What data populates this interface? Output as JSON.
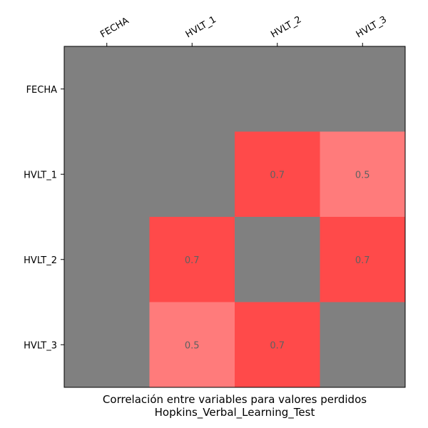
{
  "chart_data": {
    "type": "heatmap",
    "title": "Correlación entre variables para valores perdidos",
    "subtitle": "Hopkins_Verbal_Learning_Test",
    "x_labels": [
      "FECHA",
      "HVLT_1",
      "HVLT_2",
      "HVLT_3"
    ],
    "y_labels": [
      "FECHA",
      "HVLT_1",
      "HVLT_2",
      "HVLT_3"
    ],
    "x_tick_position": "top",
    "grid": false,
    "values": [
      [
        null,
        null,
        null,
        null
      ],
      [
        null,
        null,
        0.7,
        0.5
      ],
      [
        null,
        0.7,
        null,
        0.7
      ],
      [
        null,
        0.5,
        0.7,
        null
      ]
    ],
    "cell_labels": [
      [
        "",
        "",
        "",
        ""
      ],
      [
        "",
        "",
        "0.7",
        "0.5"
      ],
      [
        "",
        "0.7",
        "",
        "0.7"
      ],
      [
        "",
        "0.5",
        "0.7",
        ""
      ]
    ],
    "colors": {
      "missing": "#808080",
      "high": "#ff4a4a",
      "mid": "#ff7b7b",
      "cell_text": "#606060",
      "axis": "#000000"
    }
  }
}
